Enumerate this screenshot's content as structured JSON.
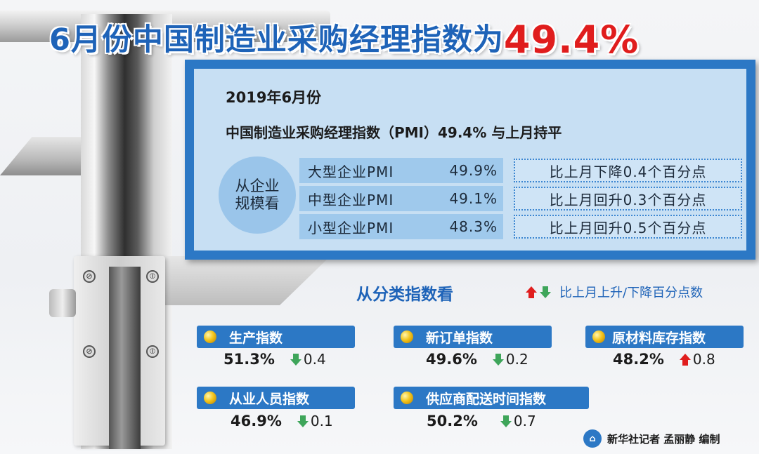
{
  "title": {
    "main": "6月份中国制造业采购经理指数为",
    "value": "49.4%"
  },
  "summary": {
    "year_month": "2019年6月份",
    "headline": "中国制造业采购经理指数（PMI）49.4% 与上月持平",
    "scale_label_line1": "从企业",
    "scale_label_line2": "规模看",
    "rows": [
      {
        "name": "大型企业PMI",
        "value": "49.9%",
        "change": "比上月下降0.4个百分点"
      },
      {
        "name": "中型企业PMI",
        "value": "49.1%",
        "change": "比上月回升0.3个百分点"
      },
      {
        "name": "小型企业PMI",
        "value": "48.3%",
        "change": "比上月回升0.5个百分点"
      }
    ]
  },
  "category": {
    "title": "从分类指数看",
    "legend": "比上月上升/下降百分点数",
    "items": [
      {
        "label": "生产指数",
        "value": "51.3%",
        "direction": "down",
        "delta": "0.4"
      },
      {
        "label": "新订单指数",
        "value": "49.6%",
        "direction": "down",
        "delta": "0.2"
      },
      {
        "label": "原材料库存指数",
        "value": "48.2%",
        "direction": "up",
        "delta": "0.8"
      },
      {
        "label": "从业人员指数",
        "value": "46.9%",
        "direction": "down",
        "delta": "0.1"
      },
      {
        "label": "供应商配送时间指数",
        "value": "50.2%",
        "direction": "down",
        "delta": "0.7"
      }
    ]
  },
  "credit": "新华社记者 孟丽静 编制",
  "colors": {
    "accent_blue": "#2c78c5",
    "title_red": "#e01d1d",
    "down_green": "#3ea55a"
  }
}
